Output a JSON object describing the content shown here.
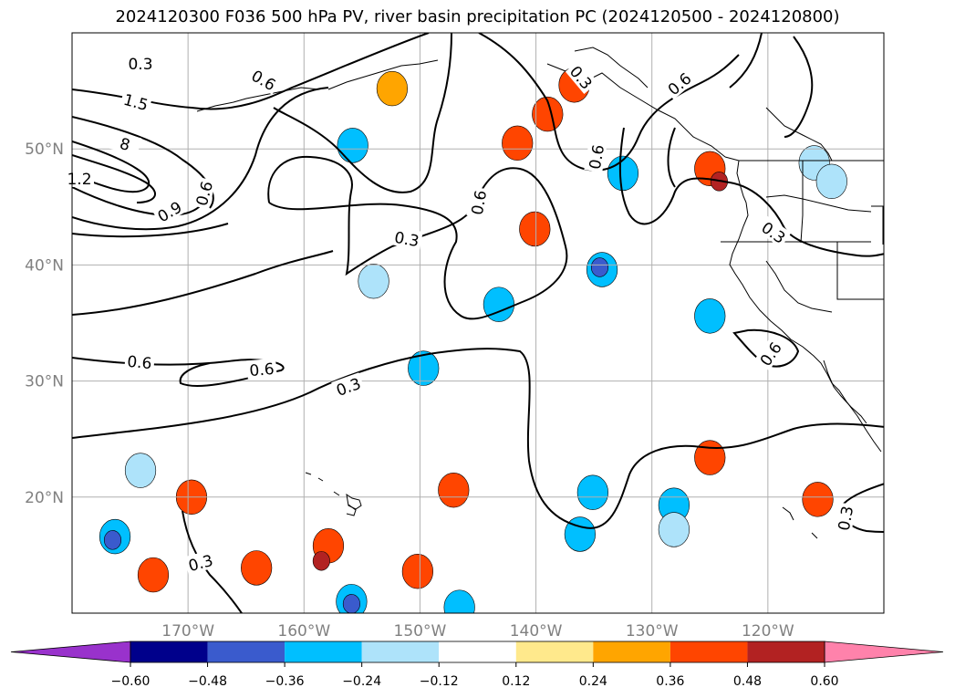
{
  "title": "2024120300 F036 500 hPa PV, river basin precipitation PC (2024120500 - 2024120800)",
  "chart_data": {
    "type": "filled-contour-map",
    "title": "2024120300 F036 500 hPa PV, river basin precipitation PC (2024120500 - 2024120800)",
    "x_ticks": [
      "170°W",
      "160°W",
      "150°W",
      "140°W",
      "130°W",
      "120°W"
    ],
    "y_ticks": [
      "50°N",
      "40°N",
      "30°N",
      "20°N"
    ],
    "lon_range": [
      -180,
      -110
    ],
    "lat_range": [
      10,
      60
    ],
    "colorbar": {
      "levels": [
        -0.6,
        -0.48,
        -0.36,
        -0.24,
        -0.12,
        0.12,
        0.24,
        0.36,
        0.48,
        0.6
      ],
      "tick_labels": [
        "−0.60",
        "−0.48",
        "−0.36",
        "−0.24",
        "−0.12",
        "0.12",
        "0.24",
        "0.36",
        "0.48",
        "0.60"
      ],
      "colors": [
        "#9932cc",
        "#00008b",
        "#3a5bcd",
        "#00bfff",
        "#aee3fa",
        "#ffffff",
        "#ffe98c",
        "#ffa500",
        "#ff4500",
        "#b22222",
        "#ff82ab"
      ],
      "extend": "both"
    },
    "pv_contour_labels": [
      "0.3",
      "0.6",
      "1.5",
      "8",
      "1.2",
      "0.9",
      "0.6",
      "0.3",
      "0.6",
      "0.3",
      "0.6",
      "0.3",
      "0.6",
      "0.6",
      "0.3",
      "0.3",
      "0.3",
      "0.6",
      "0.6"
    ],
    "precip_pc_blobs": [
      {
        "lon": -155.8,
        "lat": 50.3,
        "value": -0.36
      },
      {
        "lon": -152.4,
        "lat": 55.2,
        "value": 0.24
      },
      {
        "lon": -139.0,
        "lat": 53.0,
        "value": 0.36
      },
      {
        "lon": -141.6,
        "lat": 50.5,
        "value": 0.36
      },
      {
        "lon": -136.7,
        "lat": 55.5,
        "value": 0.36
      },
      {
        "lon": -132.5,
        "lat": 47.9,
        "value": -0.36
      },
      {
        "lon": -125.0,
        "lat": 48.3,
        "value": 0.36
      },
      {
        "lon": -124.2,
        "lat": 47.2,
        "value": 0.48
      },
      {
        "lon": -116.0,
        "lat": 48.8,
        "value": -0.24
      },
      {
        "lon": -114.5,
        "lat": 47.2,
        "value": -0.24
      },
      {
        "lon": -140.1,
        "lat": 43.1,
        "value": 0.36
      },
      {
        "lon": -134.3,
        "lat": 39.6,
        "value": -0.36
      },
      {
        "lon": -134.5,
        "lat": 39.8,
        "value": -0.48
      },
      {
        "lon": -143.2,
        "lat": 36.6,
        "value": -0.36
      },
      {
        "lon": -125.0,
        "lat": 35.6,
        "value": -0.36
      },
      {
        "lon": -149.7,
        "lat": 31.1,
        "value": -0.36
      },
      {
        "lon": -154.0,
        "lat": 38.6,
        "value": -0.24
      },
      {
        "lon": -174.1,
        "lat": 22.3,
        "value": -0.24
      },
      {
        "lon": -176.3,
        "lat": 16.6,
        "value": -0.36
      },
      {
        "lon": -176.5,
        "lat": 16.3,
        "value": -0.48
      },
      {
        "lon": -169.7,
        "lat": 20.0,
        "value": 0.36
      },
      {
        "lon": -147.1,
        "lat": 20.6,
        "value": 0.36
      },
      {
        "lon": -173.0,
        "lat": 13.3,
        "value": 0.36
      },
      {
        "lon": -164.1,
        "lat": 13.9,
        "value": 0.36
      },
      {
        "lon": -157.9,
        "lat": 15.8,
        "value": 0.36
      },
      {
        "lon": -158.5,
        "lat": 14.5,
        "value": 0.48
      },
      {
        "lon": -155.9,
        "lat": 11.0,
        "value": -0.36
      },
      {
        "lon": -155.9,
        "lat": 10.8,
        "value": -0.48
      },
      {
        "lon": -146.6,
        "lat": 10.5,
        "value": -0.36
      },
      {
        "lon": -150.2,
        "lat": 13.6,
        "value": 0.36
      },
      {
        "lon": -135.1,
        "lat": 20.4,
        "value": -0.36
      },
      {
        "lon": -136.2,
        "lat": 16.8,
        "value": -0.36
      },
      {
        "lon": -128.1,
        "lat": 19.3,
        "value": -0.36
      },
      {
        "lon": -128.1,
        "lat": 17.2,
        "value": -0.24
      },
      {
        "lon": -125.0,
        "lat": 23.4,
        "value": 0.36
      },
      {
        "lon": -115.7,
        "lat": 19.8,
        "value": 0.36
      }
    ]
  }
}
